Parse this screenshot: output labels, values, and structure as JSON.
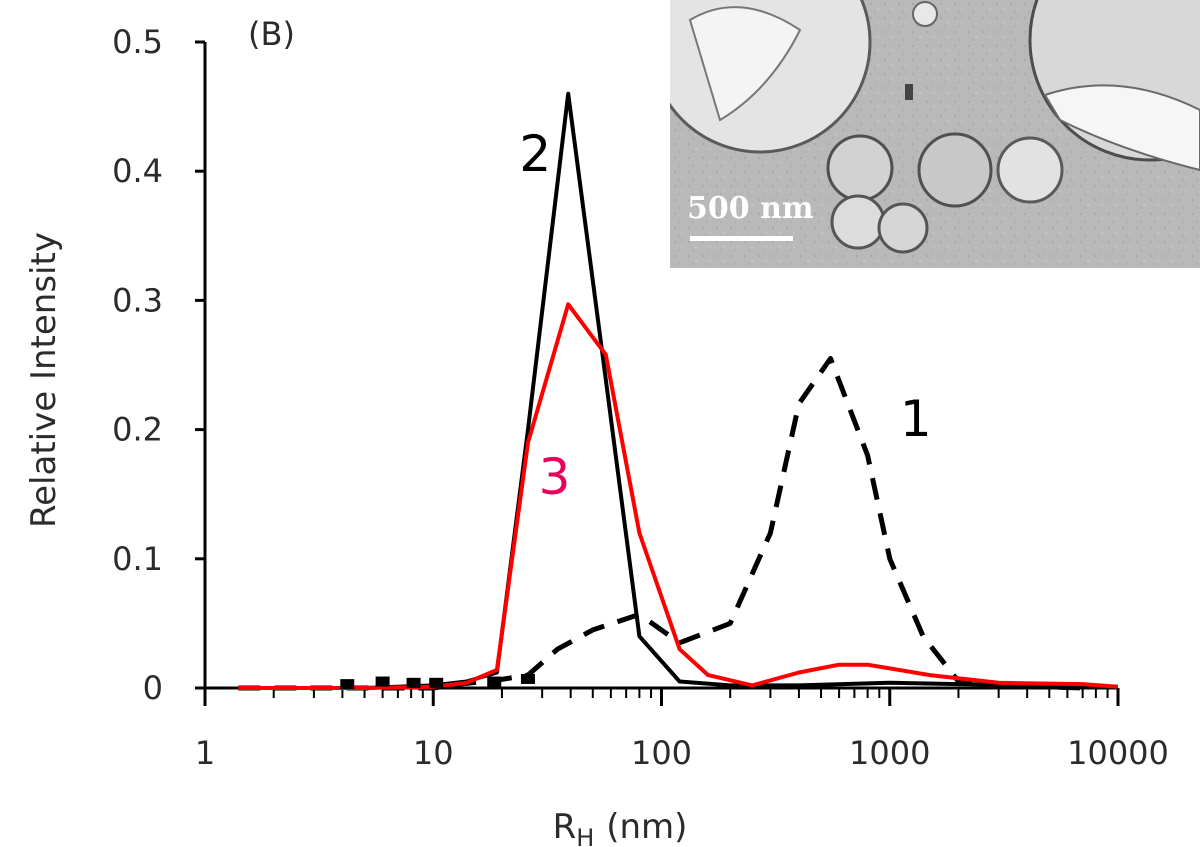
{
  "panel_label": "(B)",
  "inset": {
    "scale_bar_label": "500 nm"
  },
  "chart_data": {
    "type": "line",
    "title": "",
    "xlabel": "R",
    "xlabel_sub": "H",
    "xlabel_unit": "(nm)",
    "ylabel": "Relative Intensity",
    "xscale": "log",
    "xlim": [
      1,
      10000
    ],
    "ylim": [
      0,
      0.5
    ],
    "xticks": [
      1,
      10,
      100,
      1000,
      10000
    ],
    "xtick_labels": [
      "1",
      "10",
      "100",
      "1000",
      "10000"
    ],
    "yticks": [
      0,
      0.1,
      0.2,
      0.3,
      0.4,
      0.5
    ],
    "ytick_labels": [
      "0",
      "0.1",
      "0.2",
      "0.3",
      "0.4",
      "0.5"
    ],
    "grid": false,
    "series": [
      {
        "name": "1",
        "color": "#000000",
        "style": "dashed",
        "x": [
          1.4,
          5,
          10,
          13,
          19,
          26,
          35,
          50,
          80,
          120,
          200,
          300,
          400,
          550,
          800,
          1000,
          1400,
          2000,
          3000,
          7000
        ],
        "values": [
          0.0,
          0.0,
          0.0,
          0.003,
          0.006,
          0.01,
          0.03,
          0.045,
          0.057,
          0.035,
          0.05,
          0.12,
          0.22,
          0.255,
          0.18,
          0.1,
          0.04,
          0.005,
          0.002,
          0.0
        ]
      },
      {
        "name": "2",
        "color": "#000000",
        "style": "solid",
        "x": [
          1.4,
          5,
          10,
          14,
          19,
          26,
          39,
          55,
          80,
          120,
          200,
          400,
          1000,
          2000,
          5000,
          10000
        ],
        "values": [
          0.0,
          0.0,
          0.002,
          0.005,
          0.012,
          0.2,
          0.46,
          0.26,
          0.04,
          0.005,
          0.002,
          0.002,
          0.004,
          0.003,
          0.002,
          0.001
        ]
      },
      {
        "name": "3",
        "color": "#ff0000",
        "style": "solid",
        "x": [
          1.4,
          5,
          10,
          14,
          19,
          26,
          39,
          57,
          80,
          120,
          160,
          250,
          400,
          600,
          800,
          1500,
          3000,
          7000,
          10000
        ],
        "values": [
          0.0,
          0.0,
          0.001,
          0.004,
          0.014,
          0.19,
          0.297,
          0.258,
          0.12,
          0.03,
          0.01,
          0.002,
          0.012,
          0.018,
          0.018,
          0.01,
          0.004,
          0.003,
          0.001
        ]
      }
    ],
    "curve_labels": [
      {
        "text": "1",
        "color": "#000000",
        "x": 1300,
        "y": 0.195
      },
      {
        "text": "2",
        "color": "#000000",
        "x": 28,
        "y": 0.4
      },
      {
        "text": "3",
        "color": "#e8005a",
        "x": 34,
        "y": 0.15
      }
    ],
    "markers": [
      {
        "x": 4.2,
        "y": 0.003
      },
      {
        "x": 6.0,
        "y": 0.005
      },
      {
        "x": 8.2,
        "y": 0.004
      },
      {
        "x": 10.3,
        "y": 0.004
      },
      {
        "x": 18.5,
        "y": 0.005
      },
      {
        "x": 26,
        "y": 0.007
      }
    ]
  }
}
